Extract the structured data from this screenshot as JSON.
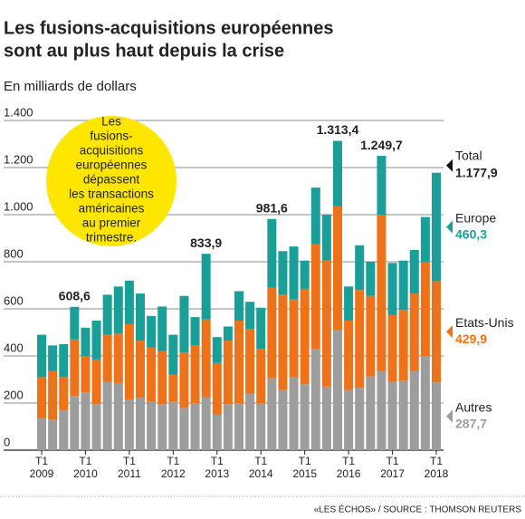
{
  "chart_data": {
    "type": "stacked_bar",
    "title_lines": [
      "Les fusions-acquisitions européennes",
      "sont au plus haut depuis la crise"
    ],
    "subtitle": "En milliards de dollars",
    "source": "«LES ÉCHOS» / SOURCE : THOMSON REUTERS",
    "callout_lines": [
      "Les",
      "fusions-",
      "acquisitions",
      "européennes",
      "dépassent",
      "les transactions",
      "américaines",
      "au premier",
      "trimestre."
    ],
    "categories": [
      "T1 2009",
      null,
      null,
      null,
      "T1 2010",
      null,
      null,
      null,
      "T1 2011",
      null,
      null,
      null,
      "T1 2012",
      null,
      null,
      null,
      "T1 2013",
      null,
      null,
      null,
      "T1 2014",
      null,
      null,
      null,
      "T1 2015",
      null,
      null,
      null,
      "T1 2016",
      null,
      null,
      null,
      "T1 2017",
      null,
      null,
      null,
      "T1 2018"
    ],
    "series": [
      {
        "name": "Autres",
        "color": "#9d9d9d",
        "last_label": "287,7",
        "values": [
          135,
          130,
          170,
          230,
          245,
          195,
          290,
          285,
          215,
          225,
          205,
          195,
          205,
          180,
          200,
          225,
          150,
          195,
          200,
          240,
          200,
          305,
          255,
          310,
          280,
          430,
          270,
          510,
          255,
          265,
          315,
          335,
          290,
          295,
          335,
          400,
          287.7
        ]
      },
      {
        "name": "Etats-Unis",
        "color": "#ee7219",
        "last_label": "429,9",
        "values": [
          175,
          205,
          140,
          240,
          155,
          190,
          200,
          210,
          320,
          240,
          230,
          225,
          115,
          235,
          245,
          330,
          220,
          270,
          350,
          275,
          230,
          385,
          405,
          330,
          405,
          445,
          535,
          525,
          295,
          415,
          340,
          665,
          285,
          300,
          330,
          400,
          429.9
        ]
      },
      {
        "name": "Europe",
        "color": "#1a9e98",
        "last_label": "460,3",
        "values": [
          180,
          110,
          140,
          138.6,
          120,
          165,
          170,
          200,
          185,
          200,
          135,
          190,
          170,
          240,
          120,
          278.9,
          110,
          60,
          125,
          115,
          175,
          291.6,
          185,
          225,
          120,
          240,
          195,
          278.4,
          145,
          190,
          145,
          249.7,
          220,
          210,
          185,
          190,
          460.3
        ]
      }
    ],
    "total_labels": [
      null,
      null,
      null,
      "608,6",
      null,
      null,
      null,
      null,
      null,
      null,
      null,
      null,
      null,
      null,
      null,
      "833,9",
      null,
      null,
      null,
      null,
      null,
      "981,6",
      null,
      null,
      null,
      null,
      null,
      "1.313,4",
      null,
      null,
      null,
      "1.249,7",
      null,
      null,
      null,
      null,
      null
    ],
    "total_legend": {
      "name": "Total",
      "label": "1.177,9"
    },
    "ylim": [
      0,
      1400
    ],
    "yticks": [
      0,
      200,
      400,
      600,
      800,
      {
        "value": 1000,
        "label": "1.000"
      },
      {
        "value": 1200,
        "label": "1.200"
      },
      {
        "value": 1400,
        "label": "1.400"
      }
    ],
    "grid": true
  }
}
